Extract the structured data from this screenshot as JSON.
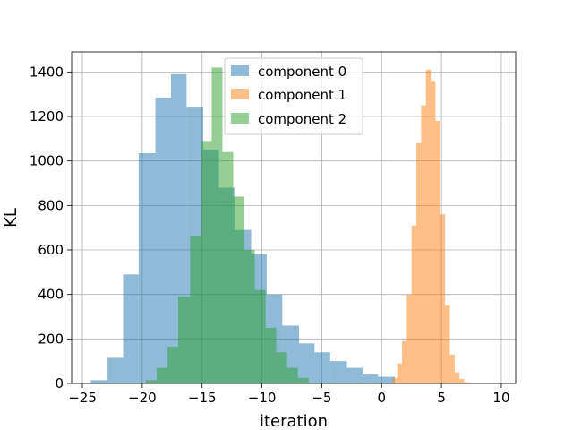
{
  "chart_data": {
    "type": "histogram",
    "title": "",
    "xlabel": "iteration",
    "ylabel": "KL",
    "xlim": [
      -25.9,
      11.2
    ],
    "ylim": [
      0,
      1490
    ],
    "xticks": [
      -25,
      -20,
      -15,
      -10,
      -5,
      0,
      5,
      10
    ],
    "xtick_labels": [
      "−25",
      "−20",
      "−15",
      "−10",
      "−5",
      "0",
      "5",
      "10"
    ],
    "yticks": [
      0,
      200,
      400,
      600,
      800,
      1000,
      1200,
      1400
    ],
    "ytick_labels": [
      "0",
      "200",
      "400",
      "600",
      "800",
      "1000",
      "1200",
      "1400"
    ],
    "grid": true,
    "legend_position": "top-center",
    "alpha": 0.5,
    "series": [
      {
        "name": "component 0",
        "color": "#1f77b4",
        "bin_edges": [
          -24.3,
          -22.9,
          -21.6,
          -20.3,
          -18.9,
          -17.6,
          -16.3,
          -14.9,
          -13.6,
          -12.3,
          -10.9,
          -9.6,
          -8.3,
          -6.9,
          -5.6,
          -4.3,
          -2.9,
          -1.6,
          -0.3,
          1.1
        ],
        "counts": [
          15,
          115,
          490,
          1035,
          1285,
          1390,
          1240,
          1050,
          880,
          690,
          580,
          400,
          260,
          180,
          140,
          100,
          70,
          40,
          30
        ]
      },
      {
        "name": "component 1",
        "color": "#ff7f0e",
        "bin_edges": [
          0.9,
          1.3,
          1.7,
          2.1,
          2.5,
          2.9,
          3.3,
          3.7,
          4.1,
          4.5,
          4.9,
          5.3,
          5.7,
          6.1,
          6.5,
          6.9,
          7.3
        ],
        "counts": [
          25,
          90,
          190,
          400,
          710,
          1080,
          1250,
          1410,
          1360,
          1180,
          760,
          350,
          130,
          50,
          20,
          5
        ]
      },
      {
        "name": "component 2",
        "color": "#2ca02c",
        "bin_edges": [
          -19.7,
          -18.8,
          -17.9,
          -17.0,
          -16.0,
          -15.1,
          -14.2,
          -13.3,
          -12.4,
          -11.5,
          -10.6,
          -9.7,
          -8.8,
          -7.9,
          -7.0,
          -6.1
        ],
        "counts": [
          15,
          70,
          165,
          390,
          660,
          1090,
          1420,
          1040,
          840,
          600,
          420,
          250,
          140,
          70,
          25
        ]
      }
    ]
  }
}
